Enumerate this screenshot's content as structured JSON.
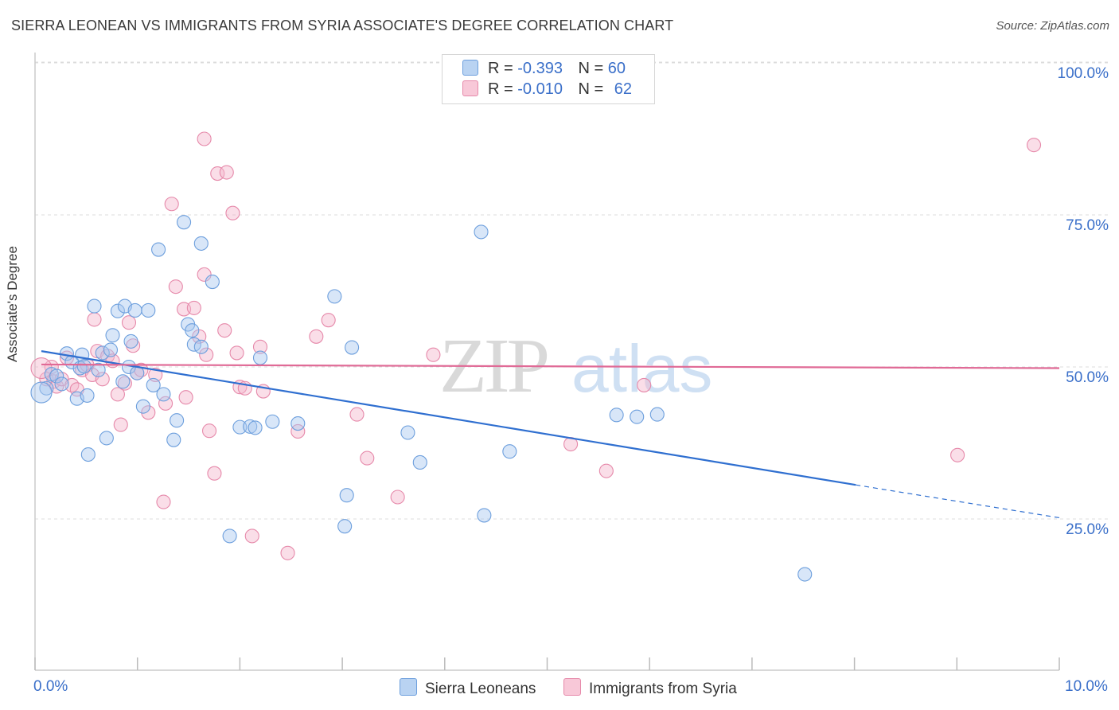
{
  "title": "SIERRA LEONEAN VS IMMIGRANTS FROM SYRIA ASSOCIATE'S DEGREE CORRELATION CHART",
  "source": "Source: ZipAtlas.com",
  "watermark": {
    "zip": "ZIP",
    "atlas": "atlas"
  },
  "legend": {
    "rows": [
      {
        "r_label": "R =",
        "r_value": "-0.393",
        "n_label": "N =",
        "n_value": "60"
      },
      {
        "r_label": "R =",
        "r_value": "-0.010",
        "n_label": "N =",
        "n_value": "62"
      }
    ]
  },
  "colors": {
    "blue_fill": "#a9c8ef",
    "blue_stroke": "#6d9fdd",
    "blue_line": "#2f6fd0",
    "pink_fill": "#f5b5cb",
    "pink_stroke": "#e689aa",
    "pink_line": "#e06a96",
    "grid": "#dcdcdc",
    "tick_label": "#3a6fc9"
  },
  "chart_data": {
    "type": "scatter",
    "title": "SIERRA LEONEAN VS IMMIGRANTS FROM SYRIA ASSOCIATE'S DEGREE CORRELATION CHART",
    "xlabel": "",
    "ylabel": "Associate's Degree",
    "xlim": [
      0,
      10
    ],
    "ylim": [
      0,
      105
    ],
    "x_tick_labels": [
      "0.0%",
      "10.0%"
    ],
    "y_ticks": [
      25,
      50,
      75,
      100
    ],
    "y_tick_labels": [
      "25.0%",
      "50.0%",
      "75.0%",
      "100.0%"
    ],
    "series": [
      {
        "name": "Sierra Leoneans",
        "color": "blue",
        "r": -0.393,
        "n": 60,
        "trend": {
          "x0": 0,
          "y0": 52.6,
          "x1": 8.0,
          "y1": 30.6,
          "dash_to_x": 10.0,
          "dash_to_y": 25.2
        },
        "points": [
          [
            0.05,
            46.5
          ],
          [
            0.1,
            48.8
          ],
          [
            0.15,
            48.5
          ],
          [
            0.2,
            47.2
          ],
          [
            0.25,
            52.2
          ],
          [
            0.3,
            50.8
          ],
          [
            0.35,
            44.8
          ],
          [
            0.38,
            49.8
          ],
          [
            0.4,
            52.0
          ],
          [
            0.42,
            50.1
          ],
          [
            0.45,
            45.3
          ],
          [
            0.46,
            35.6
          ],
          [
            0.52,
            60.0
          ],
          [
            0.56,
            49.5
          ],
          [
            0.6,
            52.3
          ],
          [
            0.64,
            38.3
          ],
          [
            0.68,
            52.8
          ],
          [
            0.7,
            55.2
          ],
          [
            0.75,
            59.2
          ],
          [
            0.8,
            47.6
          ],
          [
            0.82,
            60.0
          ],
          [
            0.86,
            50.0
          ],
          [
            0.88,
            54.2
          ],
          [
            0.92,
            59.3
          ],
          [
            0.94,
            49.0
          ],
          [
            1.0,
            43.5
          ],
          [
            1.05,
            59.3
          ],
          [
            1.1,
            47.0
          ],
          [
            1.15,
            69.3
          ],
          [
            1.2,
            45.5
          ],
          [
            1.3,
            38.0
          ],
          [
            1.33,
            41.2
          ],
          [
            1.4,
            73.8
          ],
          [
            1.44,
            57.0
          ],
          [
            1.48,
            56.0
          ],
          [
            1.5,
            53.7
          ],
          [
            1.57,
            70.3
          ],
          [
            1.57,
            53.3
          ],
          [
            1.68,
            64.0
          ],
          [
            1.85,
            22.2
          ],
          [
            1.95,
            40.1
          ],
          [
            2.05,
            40.2
          ],
          [
            2.1,
            40.0
          ],
          [
            2.15,
            51.5
          ],
          [
            2.27,
            41.0
          ],
          [
            2.52,
            40.7
          ],
          [
            2.88,
            61.6
          ],
          [
            2.98,
            23.8
          ],
          [
            3.0,
            28.9
          ],
          [
            3.05,
            53.2
          ],
          [
            3.6,
            39.2
          ],
          [
            3.72,
            34.3
          ],
          [
            4.32,
            72.2
          ],
          [
            4.35,
            25.6
          ],
          [
            4.6,
            36.1
          ],
          [
            5.65,
            42.1
          ],
          [
            5.85,
            41.8
          ],
          [
            6.05,
            42.2
          ],
          [
            7.5,
            15.9
          ],
          [
            0.0,
            45.8
          ]
        ]
      },
      {
        "name": "Immigrants from Syria",
        "color": "pink",
        "r": -0.01,
        "n": 62,
        "trend": {
          "x0": 0,
          "y0": 50.4,
          "x1": 10.0,
          "y1": 49.8
        },
        "points": [
          [
            0.05,
            48.0
          ],
          [
            0.1,
            50.0
          ],
          [
            0.12,
            47.6
          ],
          [
            0.15,
            46.8
          ],
          [
            0.2,
            48.0
          ],
          [
            0.25,
            51.5
          ],
          [
            0.3,
            47.0
          ],
          [
            0.35,
            46.3
          ],
          [
            0.4,
            49.5
          ],
          [
            0.45,
            50.3
          ],
          [
            0.5,
            48.7
          ],
          [
            0.52,
            57.8
          ],
          [
            0.55,
            52.6
          ],
          [
            0.6,
            48.0
          ],
          [
            0.65,
            51.8
          ],
          [
            0.7,
            51.0
          ],
          [
            0.75,
            45.5
          ],
          [
            0.78,
            40.5
          ],
          [
            0.82,
            47.3
          ],
          [
            0.86,
            57.3
          ],
          [
            0.9,
            53.5
          ],
          [
            0.94,
            49.0
          ],
          [
            0.98,
            49.5
          ],
          [
            1.05,
            42.5
          ],
          [
            1.12,
            48.7
          ],
          [
            1.2,
            27.8
          ],
          [
            1.22,
            44.0
          ],
          [
            1.28,
            76.8
          ],
          [
            1.32,
            63.2
          ],
          [
            1.4,
            59.5
          ],
          [
            1.42,
            45.0
          ],
          [
            1.55,
            55.0
          ],
          [
            1.6,
            87.5
          ],
          [
            1.62,
            52.0
          ],
          [
            1.65,
            39.5
          ],
          [
            1.7,
            32.5
          ],
          [
            1.73,
            81.8
          ],
          [
            1.8,
            56.0
          ],
          [
            1.88,
            75.3
          ],
          [
            1.92,
            52.3
          ],
          [
            1.95,
            46.7
          ],
          [
            2.0,
            46.5
          ],
          [
            2.07,
            22.2
          ],
          [
            2.15,
            53.3
          ],
          [
            2.18,
            46.0
          ],
          [
            2.42,
            19.4
          ],
          [
            2.52,
            39.4
          ],
          [
            2.7,
            55.0
          ],
          [
            2.82,
            57.7
          ],
          [
            3.1,
            42.2
          ],
          [
            3.2,
            35.0
          ],
          [
            3.5,
            28.6
          ],
          [
            3.85,
            52.0
          ],
          [
            5.2,
            37.3
          ],
          [
            5.55,
            32.9
          ],
          [
            5.92,
            47.0
          ],
          [
            9.0,
            35.5
          ],
          [
            9.75,
            86.5
          ],
          [
            1.6,
            65.2
          ],
          [
            0.0,
            49.8
          ],
          [
            1.82,
            82.0
          ],
          [
            1.5,
            59.7
          ]
        ]
      }
    ]
  },
  "bottom_legend": {
    "series1": "Sierra Leoneans",
    "series2": "Immigrants from Syria"
  }
}
